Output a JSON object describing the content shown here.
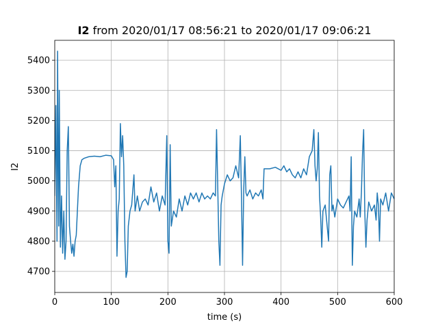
{
  "chart_data": {
    "type": "line",
    "title_variable": "I2",
    "title_text": "from 2020/01/17 08:56:21 to 2020/01/17 09:06:21",
    "xlabel": "time (s)",
    "ylabel": "I2",
    "xlim": [
      0,
      600
    ],
    "ylim": [
      4630,
      5466
    ],
    "xticks": [
      0,
      100,
      200,
      300,
      400,
      500,
      600
    ],
    "yticks": [
      4700,
      4800,
      4900,
      5000,
      5100,
      5200,
      5300,
      5400
    ],
    "grid": true,
    "series": [
      {
        "name": "I2",
        "color": "#1f77b4",
        "x": [
          0,
          2,
          4,
          5,
          6,
          7,
          8,
          10,
          12,
          14,
          16,
          18,
          20,
          22,
          24,
          26,
          28,
          30,
          32,
          34,
          36,
          38,
          40,
          42,
          45,
          48,
          52,
          60,
          70,
          80,
          90,
          100,
          104,
          106,
          108,
          110,
          112,
          114,
          116,
          118,
          120,
          122,
          124,
          126,
          128,
          130,
          133,
          136,
          140,
          142,
          146,
          150,
          155,
          160,
          165,
          170,
          175,
          180,
          185,
          190,
          195,
          198,
          200,
          202,
          204,
          206,
          210,
          215,
          220,
          225,
          230,
          235,
          240,
          245,
          250,
          255,
          260,
          265,
          270,
          275,
          280,
          284,
          286,
          288,
          290,
          292,
          294,
          296,
          300,
          305,
          310,
          315,
          320,
          325,
          328,
          330,
          332,
          334,
          336,
          338,
          340,
          345,
          350,
          355,
          360,
          365,
          368,
          370,
          380,
          390,
          400,
          405,
          410,
          415,
          420,
          425,
          430,
          435,
          440,
          445,
          450,
          455,
          458,
          460,
          462,
          464,
          466,
          468,
          470,
          472,
          474,
          478,
          480,
          484,
          486,
          488,
          490,
          492,
          495,
          500,
          505,
          510,
          515,
          520,
          522,
          524,
          526,
          528,
          530,
          534,
          538,
          540,
          542,
          544,
          546,
          548,
          550,
          552,
          555,
          560,
          565,
          568,
          570,
          572,
          574,
          576,
          580,
          585,
          590,
          595,
          600
        ],
        "values": [
          4950,
          5250,
          4800,
          5430,
          5100,
          4850,
          5300,
          4780,
          4950,
          4760,
          4900,
          4740,
          4800,
          5100,
          5180,
          4850,
          4800,
          4760,
          4790,
          4750,
          4800,
          4820,
          4900,
          4980,
          5050,
          5070,
          5075,
          5080,
          5082,
          5080,
          5085,
          5083,
          5070,
          4980,
          5050,
          4750,
          4900,
          4940,
          5190,
          5080,
          5150,
          5050,
          4800,
          4680,
          4700,
          4850,
          4900,
          4920,
          5020,
          4900,
          4950,
          4900,
          4930,
          4940,
          4920,
          4980,
          4930,
          4960,
          4900,
          4950,
          4920,
          5150,
          4800,
          4760,
          5120,
          4850,
          4900,
          4880,
          4940,
          4900,
          4950,
          4920,
          4960,
          4940,
          4960,
          4930,
          4960,
          4940,
          4950,
          4940,
          4960,
          4950,
          5170,
          4990,
          4800,
          4720,
          4920,
          4950,
          4990,
          5020,
          5000,
          5010,
          5050,
          5010,
          5150,
          4950,
          4720,
          4970,
          5080,
          4960,
          4950,
          4970,
          4940,
          4960,
          4950,
          4970,
          4940,
          5040,
          5040,
          5045,
          5035,
          5050,
          5030,
          5040,
          5020,
          5010,
          5030,
          5010,
          5040,
          5020,
          5080,
          5100,
          5170,
          5050,
          5000,
          5040,
          5160,
          4950,
          4880,
          4780,
          4900,
          4920,
          4880,
          4800,
          5020,
          5050,
          4900,
          4920,
          4880,
          4940,
          4920,
          4910,
          4930,
          4950,
          4900,
          5080,
          4720,
          4850,
          4900,
          4880,
          4940,
          4880,
          4960,
          5090,
          5170,
          4900,
          4780,
          4870,
          4930,
          4900,
          4920,
          4870,
          4960,
          4920,
          4800,
          4940,
          4920,
          4960,
          4900,
          4960,
          4940
        ]
      }
    ]
  }
}
